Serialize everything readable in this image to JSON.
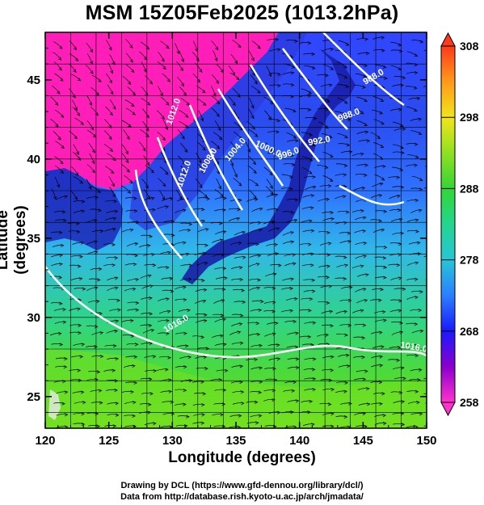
{
  "title": "MSM 15Z05Feb2025 (1013.2hPa)",
  "axes": {
    "xlabel": "Longitude (degrees)",
    "ylabel": "Latitude  (degrees)",
    "xlim": [
      120,
      150
    ],
    "ylim": [
      23,
      48
    ],
    "xticks": [
      "120",
      "125",
      "130",
      "135",
      "140",
      "145",
      "150"
    ],
    "yticks": [
      "25",
      "30",
      "35",
      "40",
      "45"
    ]
  },
  "colorbar": {
    "min": 258,
    "max": 308,
    "labels": [
      "258",
      "268",
      "278",
      "288",
      "298",
      "308"
    ]
  },
  "contour_labels": [
    "1012.0",
    "1008.0",
    "1004.0",
    "1000.0",
    "996.0",
    "992.0",
    "988.0",
    "988.0",
    "1012.0",
    "1016.0",
    "1016.0"
  ],
  "credits": {
    "line1": "Drawing by DCL (https://www.gfd-dennou.org/library/dcl/)",
    "line2": "Data from http://database.rish.kyoto-u.ac.jp/arch/jmadata/"
  }
}
